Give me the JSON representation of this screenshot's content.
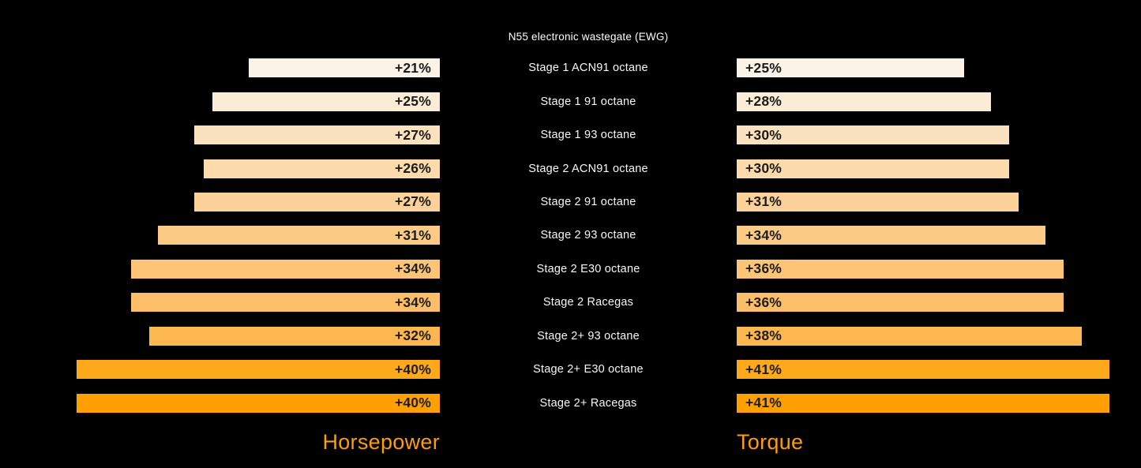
{
  "chart_title": "N55 electronic wastegate (EWG)",
  "axis_titles": {
    "left": "Horsepower",
    "right": "Torque"
  },
  "colors": {
    "background": "#000000",
    "title_text": "#ffffff",
    "category_text": "#f7f7f7",
    "value_text": "#1b1b1b",
    "axis_title_text": "#ff9e00",
    "row_colors": [
      "#fbf3e7",
      "#fbecd5",
      "#fbe2bf",
      "#fbdaab",
      "#fbd199",
      "#fbcb86",
      "#fcc477",
      "#fcbe69",
      "#fdb751",
      "#fea81c",
      "#ffa000"
    ]
  },
  "chart_data": {
    "type": "bar",
    "orientation": "horizontal",
    "layout": "mirrored-diverging, bars anchored to center gutter",
    "title": "N55 electronic wastegate (EWG)",
    "categories": [
      "Stage 1 ACN91 octane",
      "Stage 1 91 octane",
      "Stage 1 93 octane",
      "Stage 2 ACN91 octane",
      "Stage 2 91 octane",
      "Stage 2 93 octane",
      "Stage 2 E30 octane",
      "Stage 2 Racegas",
      "Stage 2+ 93 octane",
      "Stage 2+ E30 octane",
      "Stage 2+ Racegas"
    ],
    "series": [
      {
        "name": "Horsepower",
        "side": "left",
        "values": [
          21,
          25,
          27,
          26,
          27,
          31,
          34,
          34,
          32,
          40,
          40
        ],
        "labels": [
          "+21%",
          "+25%",
          "+27%",
          "+26%",
          "+27%",
          "+31%",
          "+34%",
          "+34%",
          "+32%",
          "+40%",
          "+40%"
        ]
      },
      {
        "name": "Torque",
        "side": "right",
        "values": [
          25,
          28,
          30,
          30,
          31,
          34,
          36,
          36,
          38,
          41,
          41
        ],
        "labels": [
          "+25%",
          "+28%",
          "+30%",
          "+30%",
          "+31%",
          "+34%",
          "+36%",
          "+36%",
          "+38%",
          "+41%",
          "+41%"
        ]
      }
    ],
    "unit": "percent gain vs stock",
    "xlim": [
      0,
      44.5
    ],
    "grid": false,
    "legend": "none",
    "value_labels": "inside bar ends, dark text",
    "color_mapping": "row ramp cream to orange, top to bottom"
  }
}
